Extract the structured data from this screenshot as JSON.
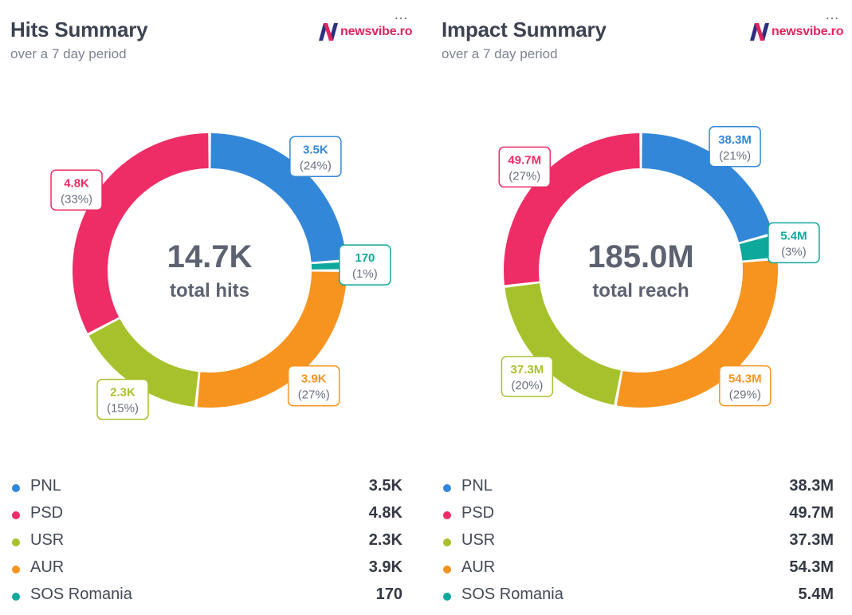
{
  "panels": [
    {
      "title": "Hits Summary",
      "subtitle": "over a 7 day period",
      "logo_text": "newsvibe.ro",
      "menu_label": "…",
      "center_value": "14.7K",
      "center_label": "total hits"
    },
    {
      "title": "Impact Summary",
      "subtitle": "over a 7 day period",
      "logo_text": "newsvibe.ro",
      "menu_label": "…",
      "center_value": "185.0M",
      "center_label": "total reach"
    }
  ],
  "colors": {
    "PNL": "#3387d8",
    "PSD": "#ee2c65",
    "USR": "#a7c12d",
    "AUR": "#f6941f",
    "SOS Romania": "#0fa89c",
    "logo_accent": "#e0245e",
    "logo_dark": "#2d2e7f"
  },
  "chart_data": [
    {
      "type": "pie",
      "categories": [
        "PNL",
        "SOS Romania",
        "AUR",
        "USR",
        "PSD"
      ],
      "values": [
        3500,
        170,
        3900,
        2300,
        4800
      ],
      "value_labels": [
        "3.5K",
        "170",
        "3.9K",
        "2.3K",
        "4.8K"
      ],
      "percent_labels": [
        "(24%)",
        "(1%)",
        "(27%)",
        "(15%)",
        "(33%)"
      ],
      "total": "14.7K",
      "center_label": "total hits",
      "title": "Hits Summary",
      "subtitle": "over a 7 day period",
      "donut": true,
      "legend": [
        {
          "name": "PNL",
          "value": "3.5K"
        },
        {
          "name": "PSD",
          "value": "4.8K"
        },
        {
          "name": "USR",
          "value": "2.3K"
        },
        {
          "name": "AUR",
          "value": "3.9K"
        },
        {
          "name": "SOS Romania",
          "value": "170"
        }
      ]
    },
    {
      "type": "pie",
      "categories": [
        "PNL",
        "SOS Romania",
        "AUR",
        "USR",
        "PSD"
      ],
      "values": [
        38.3,
        5.4,
        54.3,
        37.3,
        49.7
      ],
      "value_labels": [
        "38.3M",
        "5.4M",
        "54.3M",
        "37.3M",
        "49.7M"
      ],
      "percent_labels": [
        "(21%)",
        "(3%)",
        "(29%)",
        "(20%)",
        "(27%)"
      ],
      "total": "185.0M",
      "center_label": "total reach",
      "title": "Impact Summary",
      "subtitle": "over a 7 day period",
      "donut": true,
      "legend": [
        {
          "name": "PNL",
          "value": "38.3M"
        },
        {
          "name": "PSD",
          "value": "49.7M"
        },
        {
          "name": "USR",
          "value": "37.3M"
        },
        {
          "name": "AUR",
          "value": "54.3M"
        },
        {
          "name": "SOS Romania",
          "value": "5.4M"
        }
      ]
    }
  ]
}
